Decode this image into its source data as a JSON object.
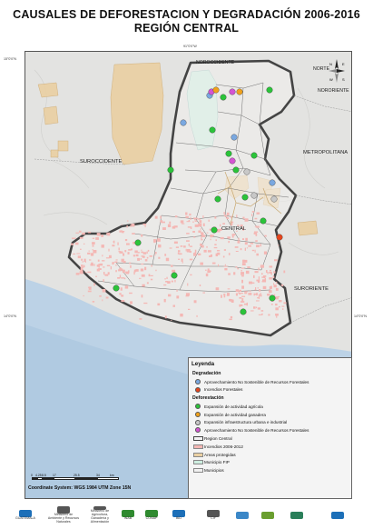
{
  "title": {
    "line1": "CAUSALES DE DEFORESTACION Y DEGRADACIÓN 2006-2016",
    "line2": "REGIÓN CENTRAL"
  },
  "map": {
    "region_labels": {
      "nororiente": "NORORIENTE",
      "norte": "NORTE",
      "noroccidente": "NOROCCIDENTE",
      "metropolitana": "METROPOLITANA",
      "suroccidente": "SUROCCIDENTE",
      "central": "CENTRAL",
      "suroriente": "SURORIENTE"
    },
    "coords": {
      "top": "91°0'0\"W",
      "left_top": "15°0'0\"N",
      "left_bottom": "14°0'0\"N",
      "right_bottom": "14°0'0\"N"
    },
    "colors": {
      "background": "#e3e3e1",
      "ocean": "#bcd2e6",
      "protected_area": "#ead0a2",
      "fire": "#f4b7b4",
      "fip": "#cdeee0",
      "region_border": "#444444"
    }
  },
  "legend": {
    "title": "Leyenda",
    "degradation_title": "Degradación",
    "deforestation_title": "Deforestación",
    "degradation": [
      {
        "label": "Aprovechamiento No Sostenible de Recursos Forestales",
        "color": "#7aa8e0",
        "icon": "circle"
      },
      {
        "label": "Incendios Forestales",
        "color": "#e4441c",
        "icon": "circle"
      }
    ],
    "deforestation": [
      {
        "label": "Expansión de actividad agrícola",
        "color": "#2bc33a",
        "icon": "circle"
      },
      {
        "label": "Expansión de actividad ganadera",
        "color": "#f0a11b",
        "icon": "circle"
      },
      {
        "label": "Expansión infraestructura urbana e industrial",
        "color": "#c8c8c8",
        "icon": "circle"
      },
      {
        "label": "Aprovechamiento No Sostenible de Recursos Forestales",
        "color": "#d455d2",
        "icon": "circle"
      }
    ],
    "layers": [
      {
        "label": "Region Central",
        "type": "region"
      },
      {
        "label": "Incendios 2006-2012",
        "color": "#f4b7b4",
        "type": "fill"
      },
      {
        "label": "Areas protegidas",
        "color": "#ead0a2",
        "type": "fill"
      },
      {
        "label": "Municipio FIP",
        "color": "#cdeee0",
        "type": "fill"
      },
      {
        "label": "Municipios",
        "color": "#f0f0f0",
        "type": "fill"
      }
    ]
  },
  "scale": {
    "labels": [
      "0",
      "4.25",
      "8.5",
      "17",
      "25.5",
      "34"
    ],
    "unit": "km"
  },
  "coordinate_system": "Coordinate System: WGS 1984 UTM Zone 15N",
  "north_arrow": {
    "n": "N",
    "s": "S",
    "e": "E",
    "w": "W"
  },
  "logos": [
    {
      "text": "GUATEMALA",
      "color": "#1c6fb8"
    },
    {
      "text": "Ministerio de Ambiente y Recursos Naturales",
      "color": "#555555"
    },
    {
      "text": "Ministerio de Agricultura, Ganadería y Alimentación",
      "color": "#555555"
    },
    {
      "text": "INAB",
      "color": "#2f8a2f"
    },
    {
      "text": "CONAP",
      "color": "#2f8a2f"
    },
    {
      "text": "BID",
      "color": "#1c6fb8"
    },
    {
      "text": "CIF",
      "color": "#555555"
    },
    {
      "text": "",
      "color": "#3b87c7"
    },
    {
      "text": "",
      "color": "#6a9e2f"
    },
    {
      "text": "",
      "color": "#2a7f5a"
    },
    {
      "text": "",
      "color": "#1c6fb8"
    }
  ]
}
